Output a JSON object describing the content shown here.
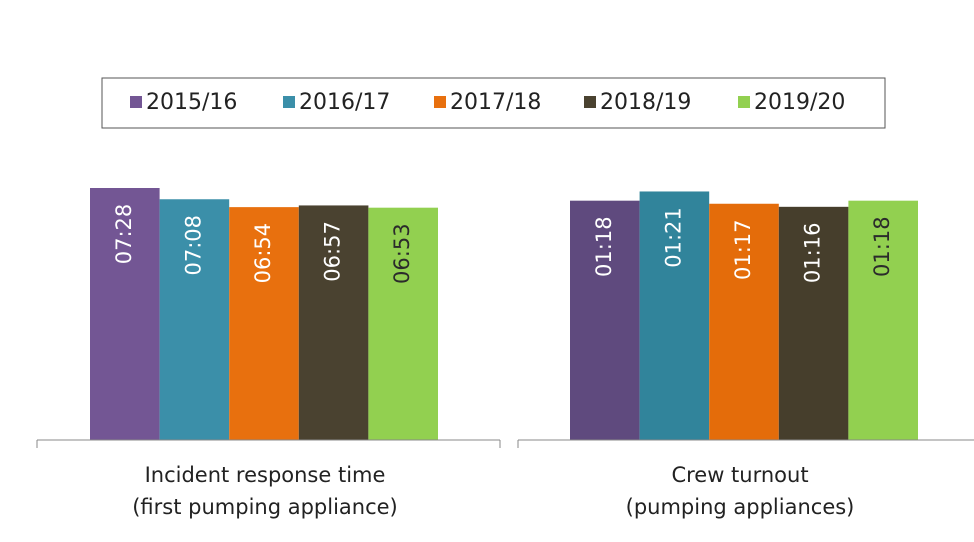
{
  "chart_data": [
    {
      "type": "bar",
      "categories": [
        [
          "Incident response time",
          "(first pumping appliance)"
        ]
      ],
      "ylim": [
        0,
        600
      ],
      "series": [
        {
          "name": "2015/16",
          "color": "#735694",
          "label_color": "#ffffff",
          "values": [
            448
          ],
          "value_labels": [
            "07:28"
          ]
        },
        {
          "name": "2016/17",
          "color": "#3b8fa9",
          "label_color": "#ffffff",
          "values": [
            428
          ],
          "value_labels": [
            "07:08"
          ]
        },
        {
          "name": "2017/18",
          "color": "#e8700e",
          "label_color": "#ffffff",
          "values": [
            414
          ],
          "value_labels": [
            "06:54"
          ]
        },
        {
          "name": "2018/19",
          "color": "#4a4230",
          "label_color": "#ffffff",
          "values": [
            417
          ],
          "value_labels": [
            "06:57"
          ]
        },
        {
          "name": "2019/20",
          "color": "#92d050",
          "label_color": "#2b2b2b",
          "values": [
            413
          ],
          "value_labels": [
            "06:53"
          ]
        }
      ]
    },
    {
      "type": "bar",
      "categories": [
        [
          "Crew turnout",
          "(pumping appliances)"
        ]
      ],
      "ylim": [
        0,
        110
      ],
      "series": [
        {
          "color": "#5f4a7e",
          "label_color": "#ffffff",
          "values": [
            78
          ],
          "value_labels": [
            "01:18"
          ]
        },
        {
          "color": "#31849b",
          "label_color": "#ffffff",
          "values": [
            81
          ],
          "value_labels": [
            "01:21"
          ]
        },
        {
          "color": "#e46c0a",
          "label_color": "#ffffff",
          "values": [
            77
          ],
          "value_labels": [
            "01:17"
          ]
        },
        {
          "color": "#463e2c",
          "label_color": "#ffffff",
          "values": [
            76
          ],
          "value_labels": [
            "01:16"
          ]
        },
        {
          "color": "#92d050",
          "label_color": "#2b2b2b",
          "values": [
            78
          ],
          "value_labels": [
            "01:18"
          ]
        }
      ]
    }
  ]
}
